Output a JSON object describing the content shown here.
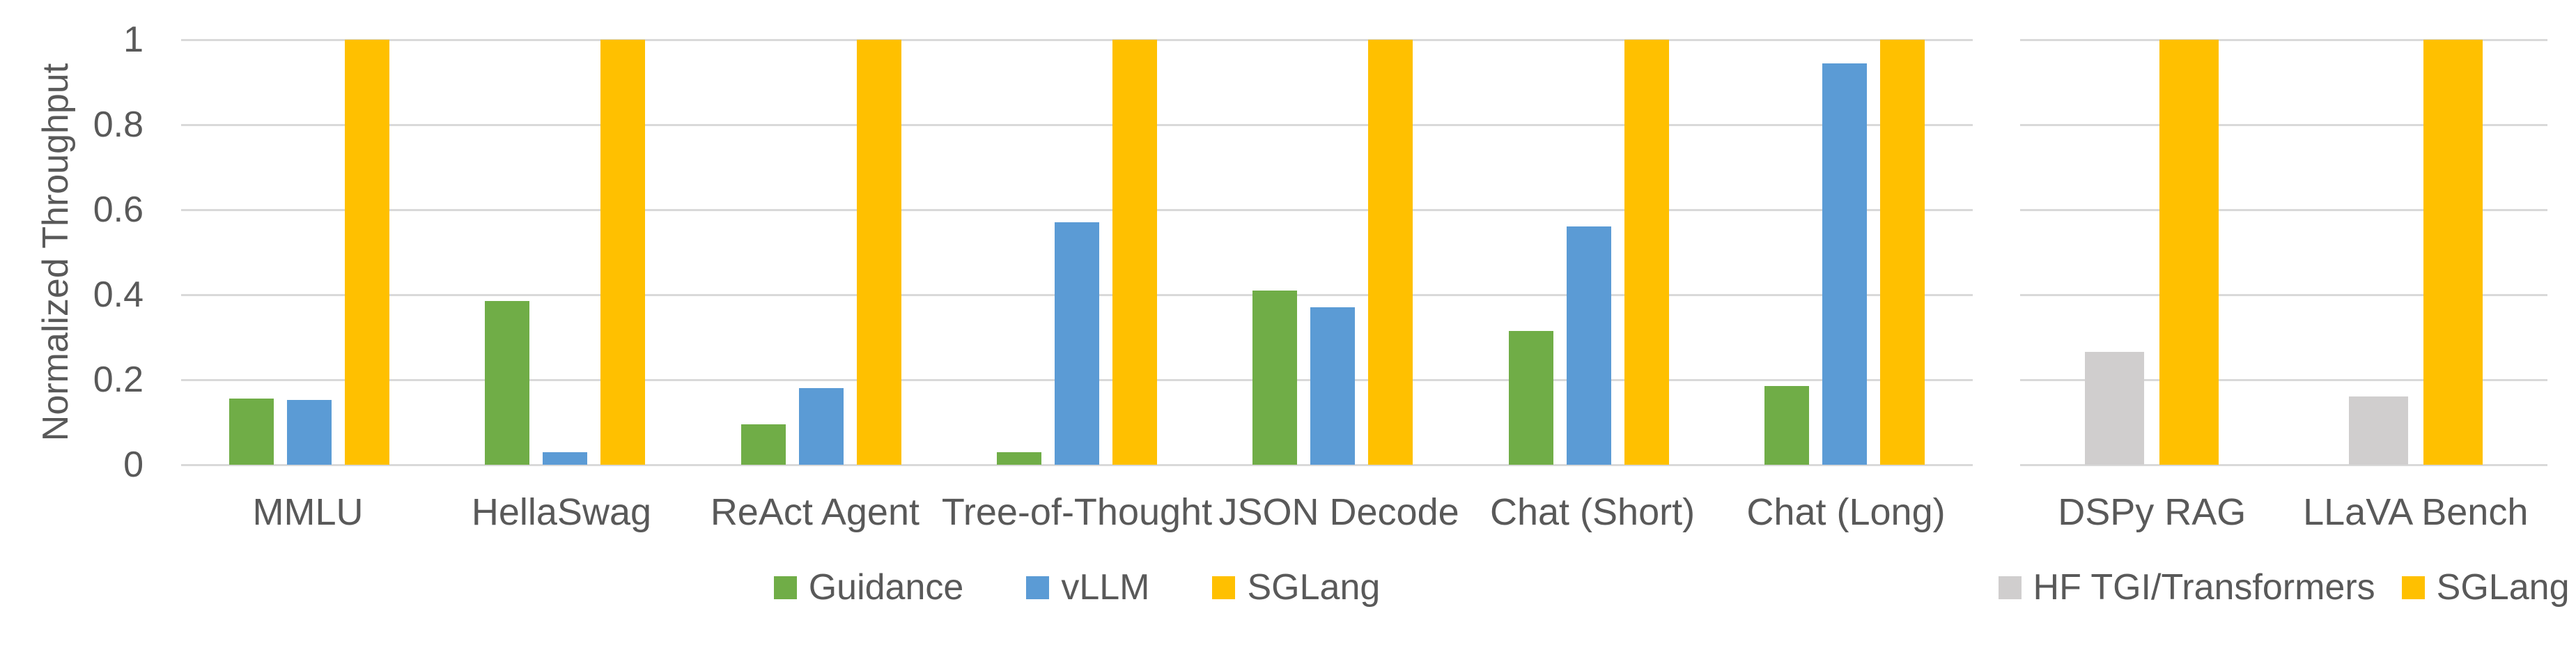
{
  "y_axis": {
    "title": "Normalized Throughput",
    "ticks": [
      "1",
      "0.8",
      "0.6",
      "0.4",
      "0.2",
      "0"
    ],
    "min": 0,
    "max": 1
  },
  "colors": {
    "guidance_green": "#70AD47",
    "vllm_blue": "#5B9BD5",
    "sglang_gold": "#FFC000",
    "hf_gray": "#D0CECE",
    "text_gray": "#595959",
    "gridline_gray": "#D9D9D9"
  },
  "chart_data": [
    {
      "type": "bar",
      "title": "",
      "ylabel": "Normalized Throughput",
      "ylim": [
        0,
        1
      ],
      "grid": true,
      "legend_position": "bottom",
      "categories": [
        "MMLU",
        "HellaSwag",
        "ReAct Agent",
        "Tree-of-Thought",
        "JSON Decode",
        "Chat (Short)",
        "Chat (Long)"
      ],
      "series": [
        {
          "name": "Guidance",
          "color": "#70AD47",
          "values": [
            0.155,
            0.385,
            0.095,
            0.03,
            0.41,
            0.315,
            0.185
          ]
        },
        {
          "name": "vLLM",
          "color": "#5B9BD5",
          "values": [
            0.153,
            0.03,
            0.18,
            0.57,
            0.37,
            0.56,
            0.945
          ]
        },
        {
          "name": "SGLang",
          "color": "#FFC000",
          "values": [
            1,
            1,
            1,
            1,
            1,
            1,
            1
          ]
        }
      ]
    },
    {
      "type": "bar",
      "title": "",
      "ylabel": "Normalized Throughput",
      "ylim": [
        0,
        1
      ],
      "grid": true,
      "legend_position": "bottom",
      "categories": [
        "DSPy RAG",
        "LLaVA Bench"
      ],
      "series": [
        {
          "name": "HF TGI/Transformers",
          "color": "#D0CECE",
          "values": [
            0.265,
            0.16
          ]
        },
        {
          "name": "SGLang",
          "color": "#FFC000",
          "values": [
            1,
            1
          ]
        }
      ]
    }
  ]
}
